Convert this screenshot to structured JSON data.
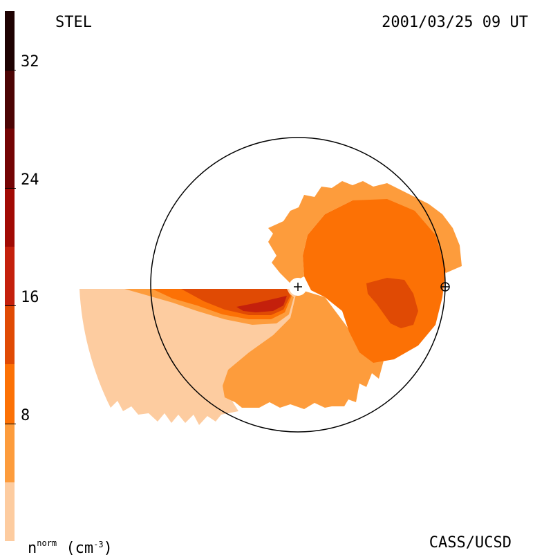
{
  "header": {
    "instrument": "STEL",
    "datetime": "2001/03/25 09 UT"
  },
  "footer": {
    "credit": "CASS/UCSD",
    "unit_base": "n",
    "unit_sup": "norm",
    "unit_open": "(cm",
    "unit_exp": "-3",
    "unit_close": ")"
  },
  "colorbar": {
    "variable": "normalized density",
    "unit": "cm^-3",
    "range": [
      0,
      36
    ],
    "ticks": [
      {
        "value": 8,
        "label": "8"
      },
      {
        "value": 16,
        "label": "16"
      },
      {
        "value": 24,
        "label": "24"
      },
      {
        "value": 32,
        "label": "32"
      }
    ],
    "levels": [
      {
        "min": 0,
        "max": 4,
        "color": "#fdcca0"
      },
      {
        "min": 4,
        "max": 8,
        "color": "#fd9c3c"
      },
      {
        "min": 8,
        "max": 12,
        "color": "#fc7105"
      },
      {
        "min": 12,
        "max": 16,
        "color": "#e04a04"
      },
      {
        "min": 16,
        "max": 20,
        "color": "#c4200c"
      },
      {
        "min": 20,
        "max": 24,
        "color": "#a10a04"
      },
      {
        "min": 24,
        "max": 28,
        "color": "#740404"
      },
      {
        "min": 28,
        "max": 32,
        "color": "#4c0404"
      },
      {
        "min": 32,
        "max": 36,
        "color": "#1e0202"
      }
    ]
  },
  "map": {
    "sun_marker": "+",
    "earth_marker": "⊕",
    "outline_color": "#000000"
  }
}
